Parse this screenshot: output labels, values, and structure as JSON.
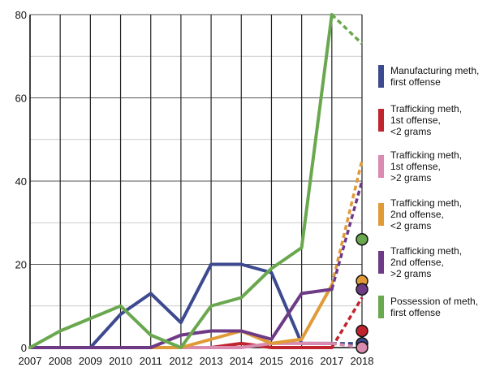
{
  "chart_data": {
    "type": "line",
    "title": "",
    "xlabel": "",
    "ylabel": "",
    "ylim": [
      0,
      80
    ],
    "y_ticks": [
      0,
      20,
      40,
      60,
      80
    ],
    "x": [
      "2007",
      "2008",
      "2009",
      "2010",
      "2011",
      "2012",
      "2013",
      "2014",
      "2015",
      "2016",
      "2017",
      "2018"
    ],
    "grid": true,
    "legend": "right",
    "projection_note": "2018 segments drawn dashed; circles mark 2018 values",
    "series": [
      {
        "name": "Manufacturing meth, first offense",
        "color": "#3d4a8f",
        "values": [
          0,
          0,
          0,
          8,
          13,
          6,
          20,
          20,
          18,
          1,
          1,
          1
        ]
      },
      {
        "name": "Trafficking meth, 1st offense, <2 grams",
        "color": "#c0242e",
        "values": [
          0,
          0,
          0,
          0,
          0,
          0,
          0,
          1,
          0,
          0,
          0,
          4
        ]
      },
      {
        "name": "Trafficking meth, 1st offense, >2 grams",
        "color": "#d98bb0",
        "values": [
          0,
          0,
          0,
          0,
          0,
          0,
          0,
          0,
          1,
          1,
          1,
          0
        ]
      },
      {
        "name": "Trafficking meth, 2nd offense, <2 grams",
        "color": "#e09a38",
        "values": [
          0,
          0,
          0,
          0,
          0,
          0,
          2,
          4,
          1,
          2,
          15,
          16
        ]
      },
      {
        "name": "Trafficking meth, 2nd offense, >2 grams",
        "color": "#6e3a86",
        "values": [
          0,
          0,
          0,
          0,
          0,
          3,
          4,
          4,
          2,
          13,
          14,
          14
        ]
      },
      {
        "name": "Possession of meth, first offense",
        "color": "#6aa84f",
        "values": [
          0,
          4,
          7,
          10,
          3,
          0,
          10,
          12,
          19,
          24,
          80,
          26
        ]
      }
    ],
    "dashed_to_2018": [
      {
        "series": 0,
        "from": 1,
        "to": 1
      },
      {
        "series": 1,
        "from": 0,
        "to": 12
      },
      {
        "series": 2,
        "from": 1,
        "to": 0
      },
      {
        "series": 3,
        "from": 15,
        "to": 45
      },
      {
        "series": 4,
        "from": 14,
        "to": 40
      },
      {
        "series": 5,
        "from": 80,
        "to": 73
      }
    ]
  }
}
